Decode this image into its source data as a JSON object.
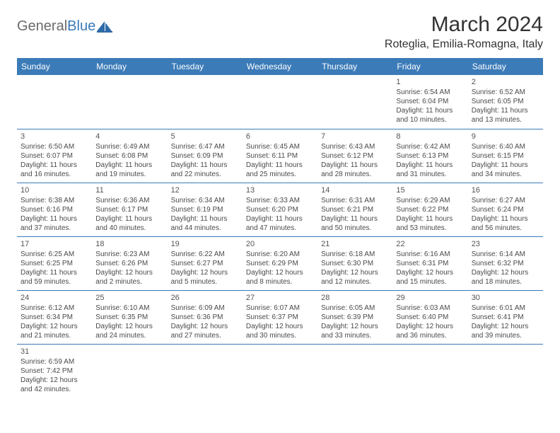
{
  "logo": {
    "text_general": "General",
    "text_blue": "Blue"
  },
  "title": "March 2024",
  "location": "Roteglia, Emilia-Romagna, Italy",
  "colors": {
    "header_bg": "#3b7bb8",
    "header_text": "#ffffff",
    "border": "#3b7bb8",
    "body_text": "#4a4a4a",
    "daynum": "#555555"
  },
  "weekdays": [
    "Sunday",
    "Monday",
    "Tuesday",
    "Wednesday",
    "Thursday",
    "Friday",
    "Saturday"
  ],
  "grid": [
    [
      null,
      null,
      null,
      null,
      null,
      {
        "day": "1",
        "sunrise": "Sunrise: 6:54 AM",
        "sunset": "Sunset: 6:04 PM",
        "daylight1": "Daylight: 11 hours",
        "daylight2": "and 10 minutes."
      },
      {
        "day": "2",
        "sunrise": "Sunrise: 6:52 AM",
        "sunset": "Sunset: 6:05 PM",
        "daylight1": "Daylight: 11 hours",
        "daylight2": "and 13 minutes."
      }
    ],
    [
      {
        "day": "3",
        "sunrise": "Sunrise: 6:50 AM",
        "sunset": "Sunset: 6:07 PM",
        "daylight1": "Daylight: 11 hours",
        "daylight2": "and 16 minutes."
      },
      {
        "day": "4",
        "sunrise": "Sunrise: 6:49 AM",
        "sunset": "Sunset: 6:08 PM",
        "daylight1": "Daylight: 11 hours",
        "daylight2": "and 19 minutes."
      },
      {
        "day": "5",
        "sunrise": "Sunrise: 6:47 AM",
        "sunset": "Sunset: 6:09 PM",
        "daylight1": "Daylight: 11 hours",
        "daylight2": "and 22 minutes."
      },
      {
        "day": "6",
        "sunrise": "Sunrise: 6:45 AM",
        "sunset": "Sunset: 6:11 PM",
        "daylight1": "Daylight: 11 hours",
        "daylight2": "and 25 minutes."
      },
      {
        "day": "7",
        "sunrise": "Sunrise: 6:43 AM",
        "sunset": "Sunset: 6:12 PM",
        "daylight1": "Daylight: 11 hours",
        "daylight2": "and 28 minutes."
      },
      {
        "day": "8",
        "sunrise": "Sunrise: 6:42 AM",
        "sunset": "Sunset: 6:13 PM",
        "daylight1": "Daylight: 11 hours",
        "daylight2": "and 31 minutes."
      },
      {
        "day": "9",
        "sunrise": "Sunrise: 6:40 AM",
        "sunset": "Sunset: 6:15 PM",
        "daylight1": "Daylight: 11 hours",
        "daylight2": "and 34 minutes."
      }
    ],
    [
      {
        "day": "10",
        "sunrise": "Sunrise: 6:38 AM",
        "sunset": "Sunset: 6:16 PM",
        "daylight1": "Daylight: 11 hours",
        "daylight2": "and 37 minutes."
      },
      {
        "day": "11",
        "sunrise": "Sunrise: 6:36 AM",
        "sunset": "Sunset: 6:17 PM",
        "daylight1": "Daylight: 11 hours",
        "daylight2": "and 40 minutes."
      },
      {
        "day": "12",
        "sunrise": "Sunrise: 6:34 AM",
        "sunset": "Sunset: 6:19 PM",
        "daylight1": "Daylight: 11 hours",
        "daylight2": "and 44 minutes."
      },
      {
        "day": "13",
        "sunrise": "Sunrise: 6:33 AM",
        "sunset": "Sunset: 6:20 PM",
        "daylight1": "Daylight: 11 hours",
        "daylight2": "and 47 minutes."
      },
      {
        "day": "14",
        "sunrise": "Sunrise: 6:31 AM",
        "sunset": "Sunset: 6:21 PM",
        "daylight1": "Daylight: 11 hours",
        "daylight2": "and 50 minutes."
      },
      {
        "day": "15",
        "sunrise": "Sunrise: 6:29 AM",
        "sunset": "Sunset: 6:22 PM",
        "daylight1": "Daylight: 11 hours",
        "daylight2": "and 53 minutes."
      },
      {
        "day": "16",
        "sunrise": "Sunrise: 6:27 AM",
        "sunset": "Sunset: 6:24 PM",
        "daylight1": "Daylight: 11 hours",
        "daylight2": "and 56 minutes."
      }
    ],
    [
      {
        "day": "17",
        "sunrise": "Sunrise: 6:25 AM",
        "sunset": "Sunset: 6:25 PM",
        "daylight1": "Daylight: 11 hours",
        "daylight2": "and 59 minutes."
      },
      {
        "day": "18",
        "sunrise": "Sunrise: 6:23 AM",
        "sunset": "Sunset: 6:26 PM",
        "daylight1": "Daylight: 12 hours",
        "daylight2": "and 2 minutes."
      },
      {
        "day": "19",
        "sunrise": "Sunrise: 6:22 AM",
        "sunset": "Sunset: 6:27 PM",
        "daylight1": "Daylight: 12 hours",
        "daylight2": "and 5 minutes."
      },
      {
        "day": "20",
        "sunrise": "Sunrise: 6:20 AM",
        "sunset": "Sunset: 6:29 PM",
        "daylight1": "Daylight: 12 hours",
        "daylight2": "and 8 minutes."
      },
      {
        "day": "21",
        "sunrise": "Sunrise: 6:18 AM",
        "sunset": "Sunset: 6:30 PM",
        "daylight1": "Daylight: 12 hours",
        "daylight2": "and 12 minutes."
      },
      {
        "day": "22",
        "sunrise": "Sunrise: 6:16 AM",
        "sunset": "Sunset: 6:31 PM",
        "daylight1": "Daylight: 12 hours",
        "daylight2": "and 15 minutes."
      },
      {
        "day": "23",
        "sunrise": "Sunrise: 6:14 AM",
        "sunset": "Sunset: 6:32 PM",
        "daylight1": "Daylight: 12 hours",
        "daylight2": "and 18 minutes."
      }
    ],
    [
      {
        "day": "24",
        "sunrise": "Sunrise: 6:12 AM",
        "sunset": "Sunset: 6:34 PM",
        "daylight1": "Daylight: 12 hours",
        "daylight2": "and 21 minutes."
      },
      {
        "day": "25",
        "sunrise": "Sunrise: 6:10 AM",
        "sunset": "Sunset: 6:35 PM",
        "daylight1": "Daylight: 12 hours",
        "daylight2": "and 24 minutes."
      },
      {
        "day": "26",
        "sunrise": "Sunrise: 6:09 AM",
        "sunset": "Sunset: 6:36 PM",
        "daylight1": "Daylight: 12 hours",
        "daylight2": "and 27 minutes."
      },
      {
        "day": "27",
        "sunrise": "Sunrise: 6:07 AM",
        "sunset": "Sunset: 6:37 PM",
        "daylight1": "Daylight: 12 hours",
        "daylight2": "and 30 minutes."
      },
      {
        "day": "28",
        "sunrise": "Sunrise: 6:05 AM",
        "sunset": "Sunset: 6:39 PM",
        "daylight1": "Daylight: 12 hours",
        "daylight2": "and 33 minutes."
      },
      {
        "day": "29",
        "sunrise": "Sunrise: 6:03 AM",
        "sunset": "Sunset: 6:40 PM",
        "daylight1": "Daylight: 12 hours",
        "daylight2": "and 36 minutes."
      },
      {
        "day": "30",
        "sunrise": "Sunrise: 6:01 AM",
        "sunset": "Sunset: 6:41 PM",
        "daylight1": "Daylight: 12 hours",
        "daylight2": "and 39 minutes."
      }
    ],
    [
      {
        "day": "31",
        "sunrise": "Sunrise: 6:59 AM",
        "sunset": "Sunset: 7:42 PM",
        "daylight1": "Daylight: 12 hours",
        "daylight2": "and 42 minutes."
      },
      null,
      null,
      null,
      null,
      null,
      null
    ]
  ]
}
